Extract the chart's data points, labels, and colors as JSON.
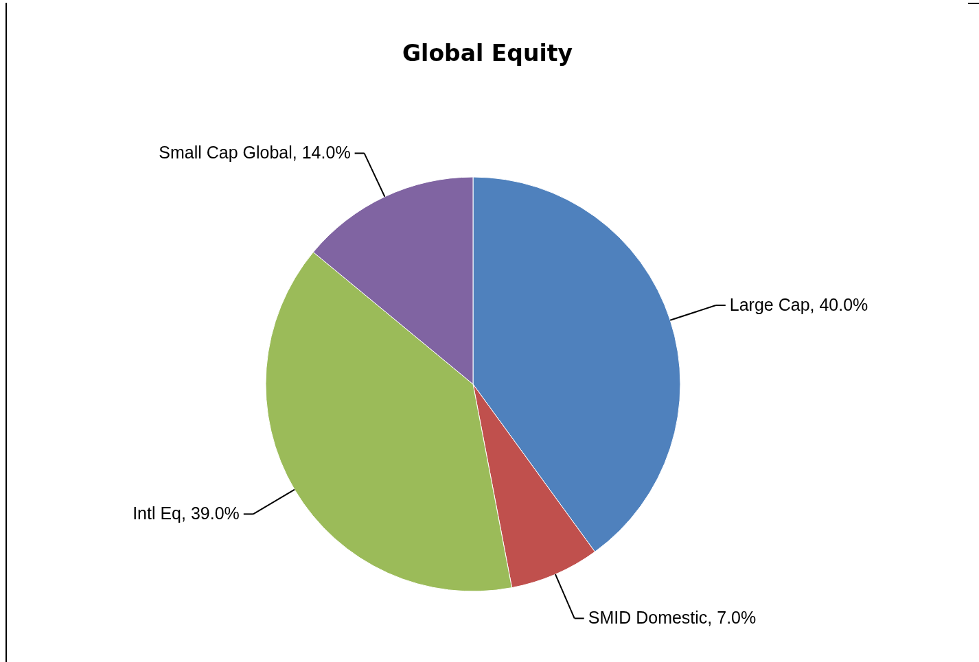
{
  "chart_data": {
    "type": "pie",
    "title": "Global Equity",
    "categories": [
      "Large Cap",
      "SMID Domestic",
      "Intl Eq",
      "Small Cap Global"
    ],
    "values": [
      40,
      7,
      39,
      14
    ],
    "value_labels": [
      "40.0%",
      "7.0%",
      "39.0%",
      "14.0%"
    ],
    "colors": [
      "#4f81bd",
      "#c0504d",
      "#9bbb59",
      "#8064a2"
    ],
    "legend": false
  }
}
